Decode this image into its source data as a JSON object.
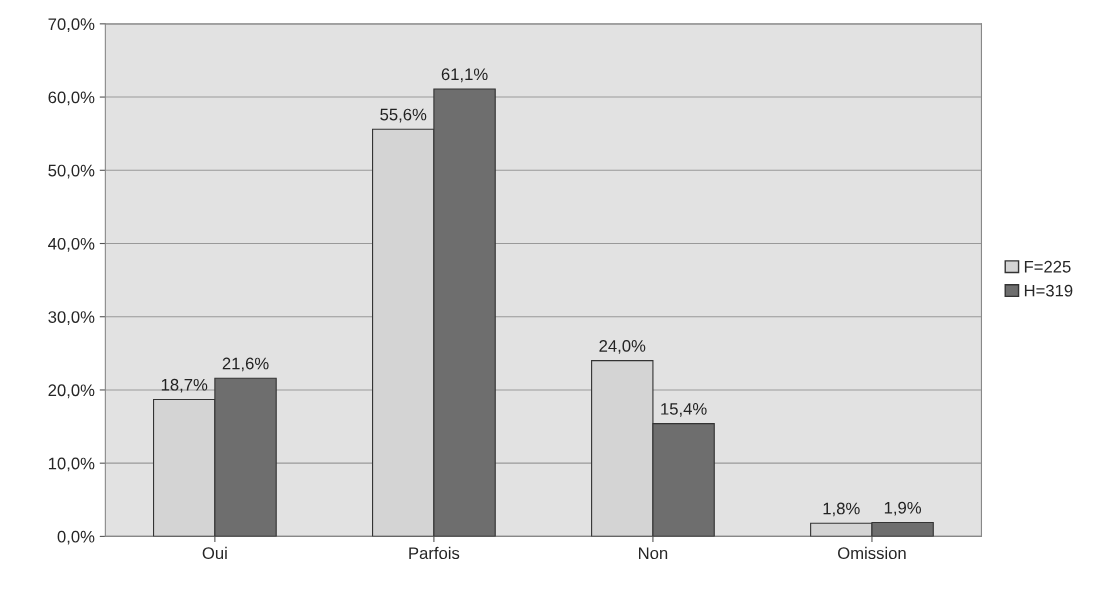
{
  "chart_data": {
    "type": "bar",
    "categories": [
      "Oui",
      "Parfois",
      "Non",
      "Omission"
    ],
    "series": [
      {
        "name": "F=225",
        "color": "#d4d4d4",
        "values": [
          18.7,
          55.6,
          24.0,
          1.8
        ],
        "value_labels": [
          "18,7%",
          "55,6%",
          "24,0%",
          "1,8%"
        ]
      },
      {
        "name": "H=319",
        "color": "#6e6e6e",
        "values": [
          21.6,
          61.1,
          15.4,
          1.9
        ],
        "value_labels": [
          "21,6%",
          "61,1%",
          "15,4%",
          "1,9%"
        ]
      }
    ],
    "ylim": [
      0,
      70
    ],
    "yticks": [
      {
        "value": 0,
        "label": "0,0%"
      },
      {
        "value": 10,
        "label": "10,0%"
      },
      {
        "value": 20,
        "label": "20,0%"
      },
      {
        "value": 30,
        "label": "30,0%"
      },
      {
        "value": 40,
        "label": "40,0%"
      },
      {
        "value": 50,
        "label": "50,0%"
      },
      {
        "value": 60,
        "label": "60,0%"
      },
      {
        "value": 70,
        "label": "70,0%"
      }
    ],
    "grid": "y",
    "legend": "right"
  }
}
